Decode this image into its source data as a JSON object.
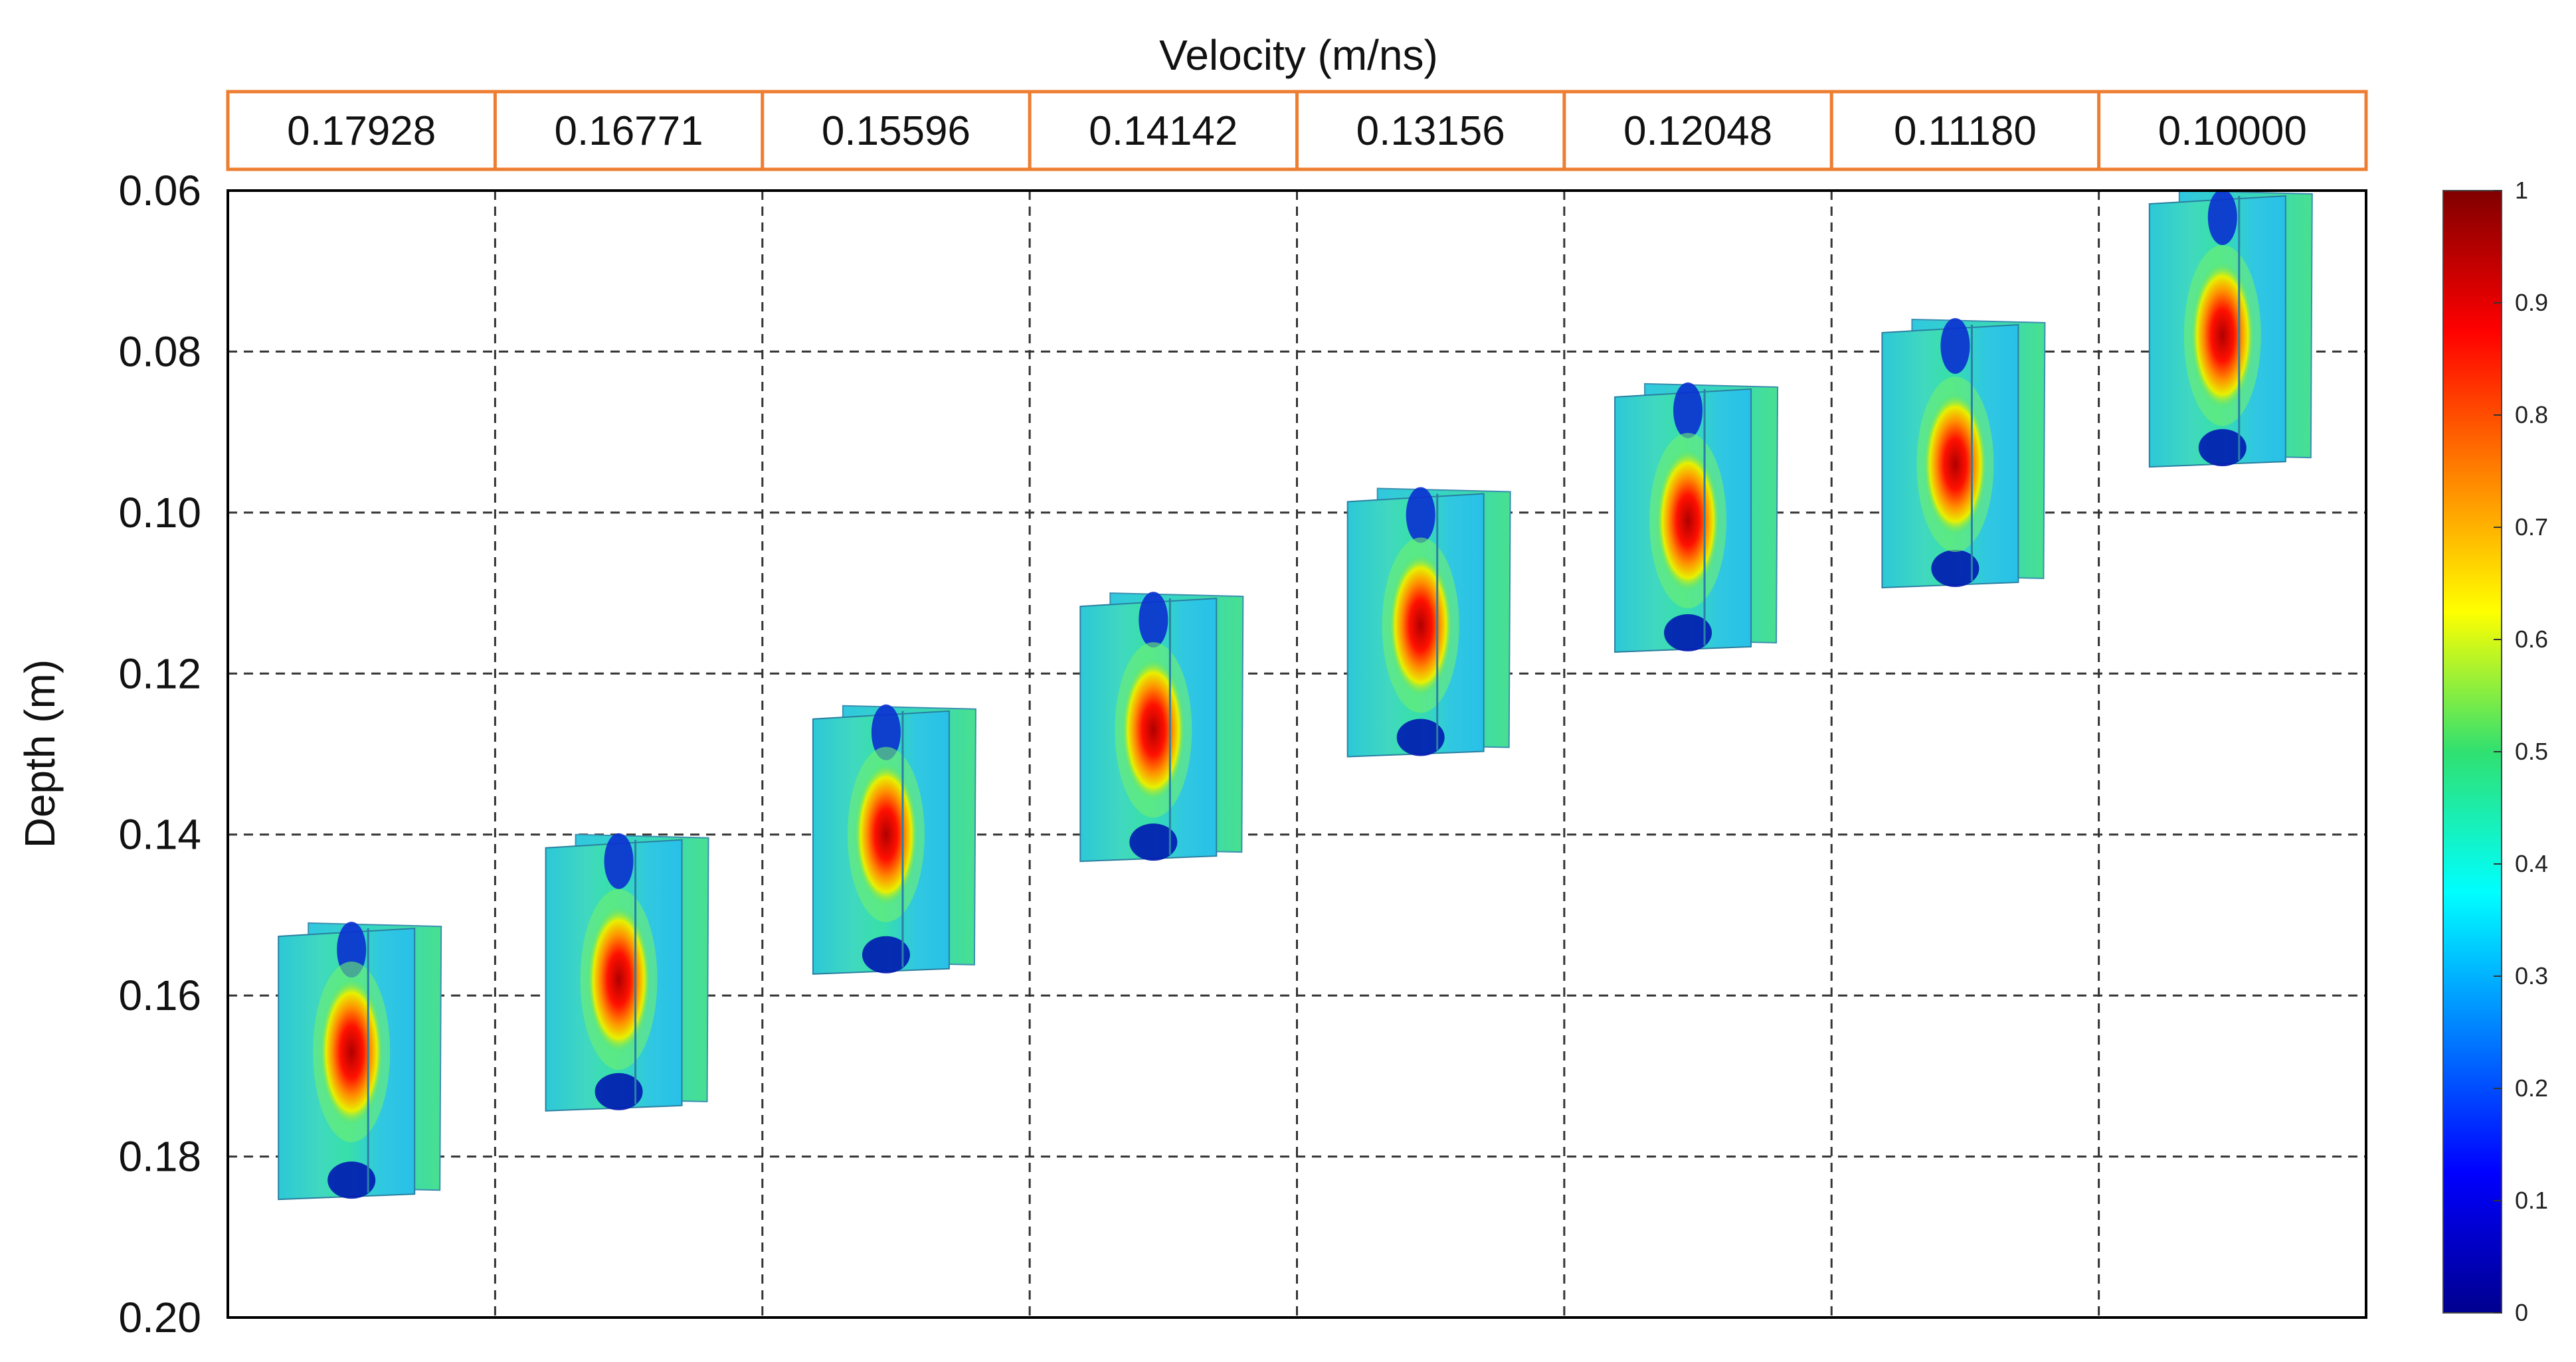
{
  "chart_data": {
    "type": "heatmap",
    "title": "Velocity (m/ns)",
    "ylabel": "Depth (m)",
    "velocities": [
      "0.17928",
      "0.16771",
      "0.15596",
      "0.14142",
      "0.13156",
      "0.12048",
      "0.11180",
      "0.10000"
    ],
    "y_ticks": [
      "0.06",
      "0.08",
      "0.10",
      "0.12",
      "0.14",
      "0.16",
      "0.18",
      "0.20"
    ],
    "ylim": [
      0.06,
      0.2
    ],
    "y_inverted": true,
    "grid": true,
    "grid_style": "dashed",
    "slices": [
      {
        "velocity": 0.17928,
        "depth_top": 0.151,
        "depth_bottom": 0.185,
        "peak_depth": 0.167
      },
      {
        "velocity": 0.16771,
        "depth_top": 0.14,
        "depth_bottom": 0.174,
        "peak_depth": 0.158
      },
      {
        "velocity": 0.15596,
        "depth_top": 0.124,
        "depth_bottom": 0.157,
        "peak_depth": 0.14
      },
      {
        "velocity": 0.14142,
        "depth_top": 0.11,
        "depth_bottom": 0.143,
        "peak_depth": 0.127
      },
      {
        "velocity": 0.13156,
        "depth_top": 0.097,
        "depth_bottom": 0.13,
        "peak_depth": 0.114
      },
      {
        "velocity": 0.12048,
        "depth_top": 0.084,
        "depth_bottom": 0.117,
        "peak_depth": 0.101
      },
      {
        "velocity": 0.1118,
        "depth_top": 0.076,
        "depth_bottom": 0.109,
        "peak_depth": 0.094
      },
      {
        "velocity": 0.1,
        "depth_top": 0.06,
        "depth_bottom": 0.094,
        "peak_depth": 0.078
      }
    ],
    "colorbar": {
      "min": 0,
      "max": 1,
      "ticks": [
        "0",
        "0.1",
        "0.2",
        "0.3",
        "0.4",
        "0.5",
        "0.6",
        "0.7",
        "0.8",
        "0.9",
        "1"
      ],
      "colormap": "jet"
    }
  },
  "colors": {
    "header_border": "#ED7D31",
    "axis": "#000000",
    "grid": "#333333"
  }
}
